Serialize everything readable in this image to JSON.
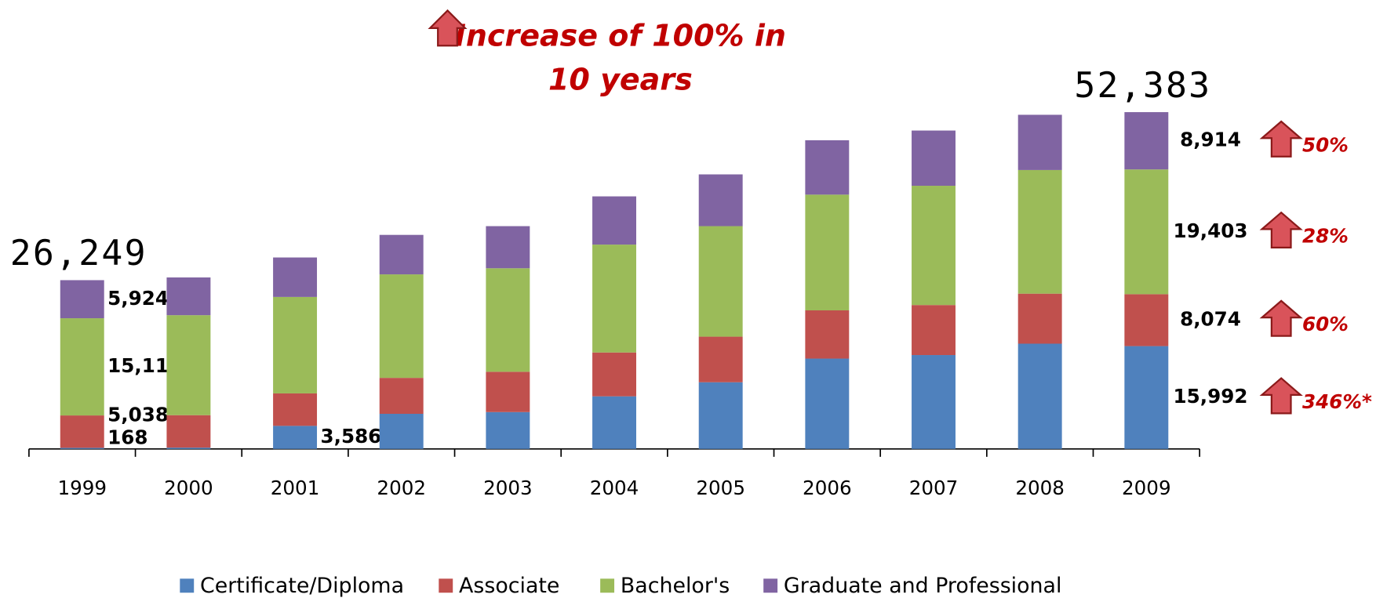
{
  "chart_data": {
    "type": "stacked_bar",
    "title": [
      "Increase of 100% in",
      "10 years"
    ],
    "categories": [
      "1999",
      "2000",
      "2001",
      "2002",
      "2003",
      "2004",
      "2005",
      "2006",
      "2007",
      "2008",
      "2009"
    ],
    "series": [
      {
        "name": "Certificate/Diploma",
        "color": "#4f81bd",
        "values": [
          168,
          200,
          3586,
          5460,
          5730,
          8180,
          10370,
          14050,
          14600,
          16370,
          15992
        ],
        "value_labels": [
          "168",
          null,
          "3,586",
          null,
          null,
          null,
          null,
          null,
          null,
          null,
          "15,992"
        ],
        "change": {
          "value": 346,
          "label": "346%*"
        }
      },
      {
        "name": "Associate",
        "color": "#c0504d",
        "values": [
          5038,
          5050,
          5050,
          5590,
          6270,
          6820,
          7090,
          7500,
          7780,
          7780,
          8074
        ],
        "value_labels": [
          "5,038",
          null,
          null,
          null,
          null,
          null,
          null,
          null,
          null,
          null,
          "8,074"
        ],
        "change": {
          "value": 60,
          "label": "60%"
        }
      },
      {
        "name": "Bachelor's",
        "color": "#9bbb59",
        "values": [
          15119,
          15550,
          15000,
          16100,
          16100,
          16780,
          17190,
          18000,
          18550,
          19230,
          19403
        ],
        "value_labels": [
          "15,119",
          null,
          null,
          null,
          null,
          null,
          null,
          null,
          null,
          null,
          "19,403"
        ],
        "change": {
          "value": 28,
          "label": "28%"
        }
      },
      {
        "name": "Graduate and Professional",
        "color": "#8064a2",
        "values": [
          5924,
          5870,
          6140,
          6140,
          6550,
          7500,
          8050,
          8460,
          8590,
          8590,
          8914
        ],
        "value_labels": [
          "5,924",
          null,
          null,
          null,
          null,
          null,
          null,
          null,
          null,
          null,
          "8,914"
        ],
        "change": {
          "value": 50,
          "label": "50%"
        }
      }
    ],
    "total_labels": [
      {
        "category": "1999",
        "value": 26249,
        "label": "26,249"
      },
      {
        "category": "2009",
        "value": 52383,
        "label": "52,383"
      }
    ],
    "ylim": [
      0,
      60000
    ],
    "grid": false,
    "legend": "bottom"
  }
}
